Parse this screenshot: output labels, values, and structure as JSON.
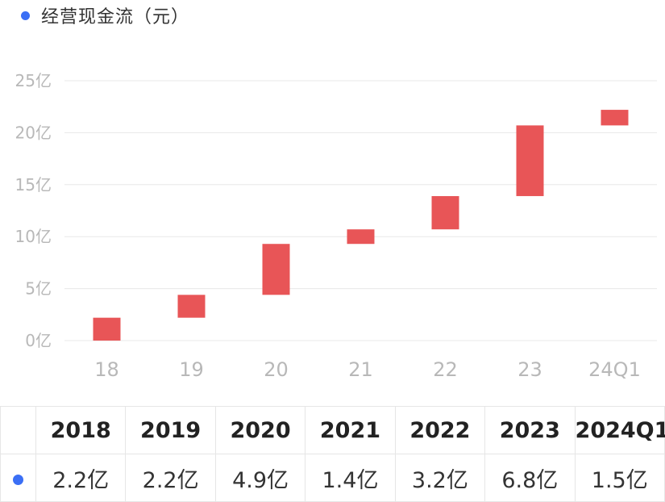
{
  "colors": {
    "series": "#e85557",
    "legend_dot": "#3b6ff5",
    "grid": "#e8e8e8"
  },
  "chart_data": {
    "type": "bar",
    "subtype": "waterfall",
    "series_name": "经营现金流（元）",
    "categories": [
      "18",
      "19",
      "20",
      "21",
      "22",
      "23",
      "24Q1"
    ],
    "y_unit": "亿",
    "ylim": [
      0,
      25
    ],
    "yticks": [
      "0亿",
      "5亿",
      "10亿",
      "15亿",
      "20亿",
      "25亿"
    ],
    "ytick_values": [
      0,
      5,
      10,
      15,
      20,
      25
    ],
    "grid": true,
    "legend": "top-left",
    "bars": [
      {
        "start": 0.0,
        "end": 2.2
      },
      {
        "start": 2.2,
        "end": 4.4
      },
      {
        "start": 4.4,
        "end": 9.3
      },
      {
        "start": 9.3,
        "end": 10.7
      },
      {
        "start": 10.7,
        "end": 13.9
      },
      {
        "start": 13.9,
        "end": 20.7
      },
      {
        "start": 20.7,
        "end": 22.2
      }
    ]
  },
  "table": {
    "headers": [
      "2018",
      "2019",
      "2020",
      "2021",
      "2022",
      "2023",
      "2024Q1"
    ],
    "values": [
      "2.2亿",
      "2.2亿",
      "4.9亿",
      "1.4亿",
      "3.2亿",
      "6.8亿",
      "1.5亿"
    ]
  }
}
